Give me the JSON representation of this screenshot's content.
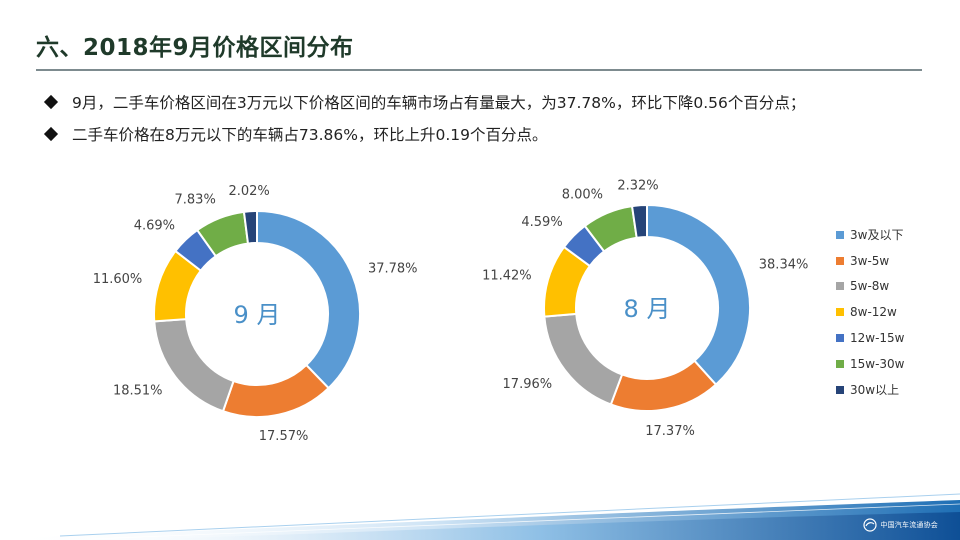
{
  "page": {
    "title": "六、2018年9月价格区间分布",
    "bullets": [
      "9月，二手车价格区间在3万元以下价格区间的车辆市场占有量最大，为37.78%，环比下降0.56个百分点；",
      "二手车价格在8万元以下的车辆占73.86%，环比上升0.19个百分点。"
    ],
    "logo_text": "中国汽车流通协会"
  },
  "colors": {
    "accent_title": "#1f3a2a",
    "series": [
      "#5b9bd5",
      "#ed7d31",
      "#a5a5a5",
      "#ffc000",
      "#4472c4",
      "#70ad47",
      "#264478"
    ],
    "center_label": "#4a90c8"
  },
  "chart_data": [
    {
      "type": "pie",
      "variant": "donut",
      "center_label": "9 月",
      "categories": [
        "3w及以下",
        "3w-5w",
        "5w-8w",
        "8w-12w",
        "12w-15w",
        "15w-30w",
        "30w以上"
      ],
      "values": [
        37.78,
        17.57,
        18.51,
        11.6,
        4.69,
        7.83,
        2.02
      ],
      "labels": [
        "37.78%",
        "17.57%",
        "18.51%",
        "11.60%",
        "4.69%",
        "7.83%",
        "2.02%"
      ]
    },
    {
      "type": "pie",
      "variant": "donut",
      "center_label": "8 月",
      "categories": [
        "3w及以下",
        "3w-5w",
        "5w-8w",
        "8w-12w",
        "12w-15w",
        "15w-30w",
        "30w以上"
      ],
      "values": [
        38.34,
        17.37,
        17.96,
        11.42,
        4.59,
        8.0,
        2.32
      ],
      "labels": [
        "38.34%",
        "17.37%",
        "17.96%",
        "11.42%",
        "4.59%",
        "8.00%",
        "2.32%"
      ]
    }
  ],
  "legend": {
    "position": "right",
    "items": [
      "3w及以下",
      "3w-5w",
      "5w-8w",
      "8w-12w",
      "12w-15w",
      "15w-30w",
      "30w以上"
    ]
  }
}
